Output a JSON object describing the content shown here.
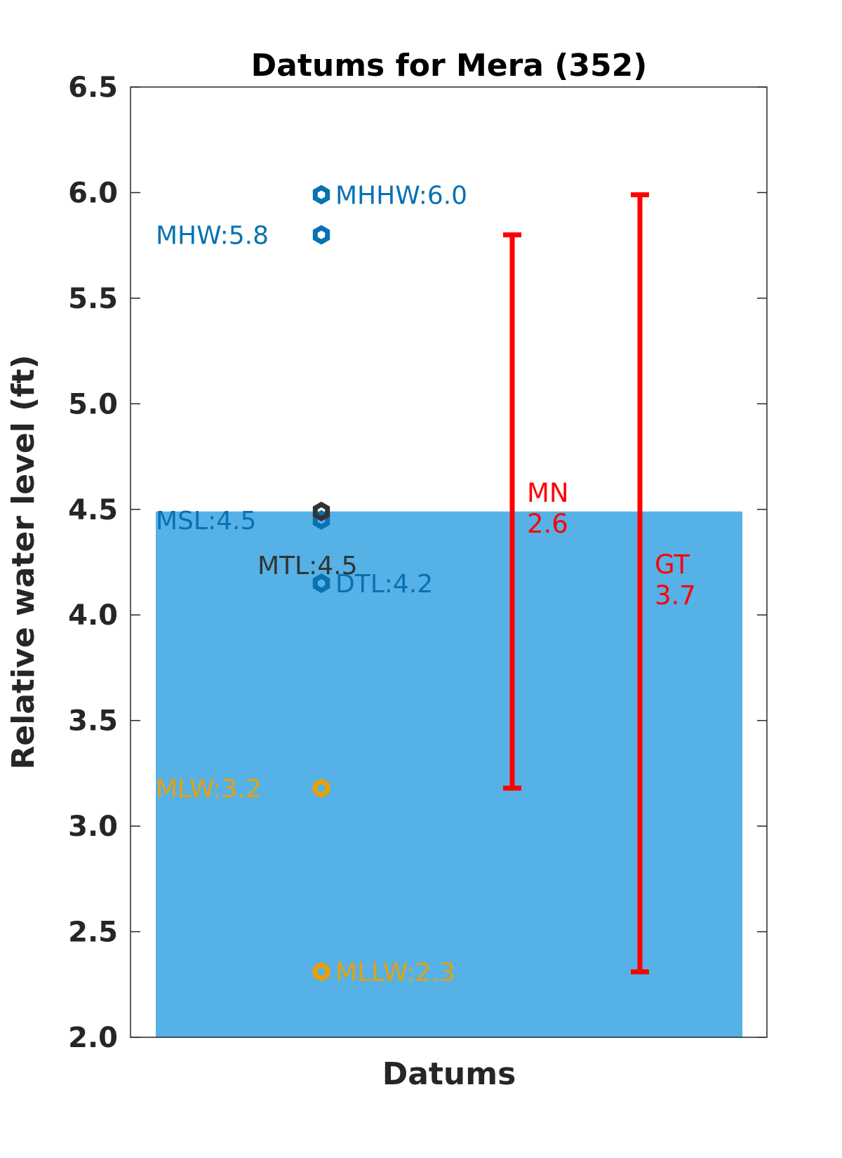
{
  "chart_data": {
    "type": "scatter",
    "title": "Datums for Mera (352)",
    "xlabel": "Datums",
    "ylabel": "Relative water level (ft)",
    "ylim": [
      2.0,
      6.5
    ],
    "yticks": [
      "2.0",
      "2.5",
      "3.0",
      "3.5",
      "4.0",
      "4.5",
      "5.0",
      "5.5",
      "6.0",
      "6.5"
    ],
    "grid": false,
    "background_fill": {
      "from": 2.0,
      "to": 4.49,
      "color": "#56b1e6"
    },
    "points": [
      {
        "label": "MHHW:6.0",
        "value": 5.99,
        "color": "#0872b2",
        "label_side": "right"
      },
      {
        "label": "MHW:5.8",
        "value": 5.8,
        "color": "#0872b2",
        "label_side": "left"
      },
      {
        "label": "MSL:4.5",
        "value": 4.45,
        "color": "#0872b2",
        "label_side": "left"
      },
      {
        "label": "MTL:4.5",
        "value": 4.49,
        "color": "#333333",
        "label_side": "below-left"
      },
      {
        "label": "DTL:4.2",
        "value": 4.15,
        "color": "#0872b2",
        "label_side": "right"
      },
      {
        "label": "MLW:3.2",
        "value": 3.18,
        "color": "#e6a10a",
        "label_side": "left"
      },
      {
        "label": "MLLW:2.3",
        "value": 2.31,
        "color": "#e6a10a",
        "label_side": "right"
      }
    ],
    "ranges": [
      {
        "name": "MN",
        "value_text": "2.6",
        "from": 3.18,
        "to": 5.8,
        "color": "#ff0000"
      },
      {
        "name": "GT",
        "value_text": "3.7",
        "from": 2.31,
        "to": 5.99,
        "color": "#ff0000"
      }
    ]
  }
}
